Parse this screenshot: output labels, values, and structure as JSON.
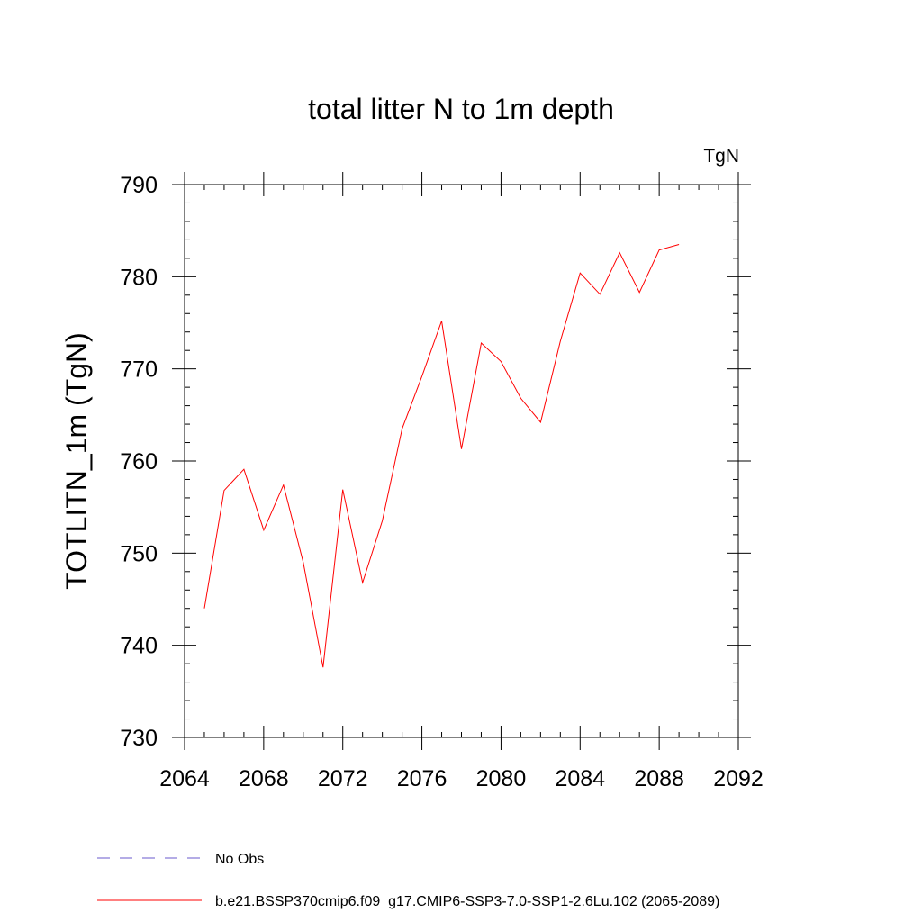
{
  "chart_data": {
    "type": "line",
    "title": "total litter N to 1m depth",
    "units_label": "TgN",
    "xlabel": "",
    "ylabel": "TOTLITN_1m  (TgN)",
    "xlim": [
      2064,
      2092
    ],
    "ylim": [
      730,
      790
    ],
    "x_ticks": [
      2064,
      2068,
      2072,
      2076,
      2080,
      2084,
      2088,
      2092
    ],
    "y_ticks": [
      730,
      740,
      750,
      760,
      770,
      780,
      790
    ],
    "grid": false,
    "legend_position": "bottom",
    "series": [
      {
        "name": "b.e21.BSSP370cmip6.f09_g17.CMIP6-SSP3-7.0-SSP1-2.6Lu.102 (2065-2089)",
        "color": "#ff0000",
        "line_style": "solid",
        "x": [
          2065,
          2066,
          2067,
          2068,
          2069,
          2070,
          2071,
          2072,
          2073,
          2074,
          2075,
          2076,
          2077,
          2078,
          2079,
          2080,
          2081,
          2082,
          2083,
          2084,
          2085,
          2086,
          2087,
          2088,
          2089
        ],
        "y": [
          744.0,
          756.8,
          759.1,
          752.5,
          757.4,
          749.0,
          737.6,
          756.9,
          746.8,
          753.5,
          763.5,
          769.2,
          775.2,
          761.3,
          772.8,
          770.8,
          766.8,
          764.2,
          773.0,
          780.4,
          778.1,
          782.6,
          778.3,
          782.9,
          783.5
        ]
      },
      {
        "name": "No Obs",
        "color": "#6a5acd",
        "line_style": "dashed",
        "x": [],
        "y": []
      }
    ]
  }
}
